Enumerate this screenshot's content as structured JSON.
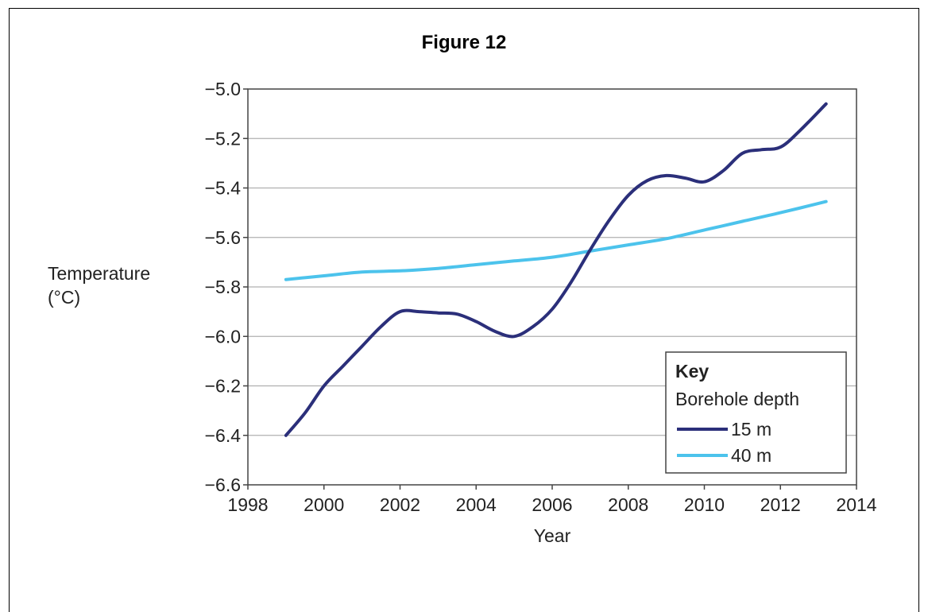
{
  "figure_title": "Figure 12",
  "colors": {
    "series_15m": "#2b2f7a",
    "series_40m": "#4cc3ec",
    "grid": "#b0b0b0",
    "axis": "#444444"
  },
  "chart_data": {
    "type": "line",
    "title": "",
    "xlabel": "Year",
    "ylabel": "Temperature\n(°C)",
    "ylabel_lines": [
      "Temperature",
      "(°C)"
    ],
    "xlim": [
      1998,
      2014
    ],
    "ylim": [
      -6.6,
      -5.0
    ],
    "x_ticks": [
      1998,
      2000,
      2002,
      2004,
      2006,
      2008,
      2010,
      2012,
      2014
    ],
    "y_ticks": [
      -6.6,
      -6.4,
      -6.2,
      -6.0,
      -5.8,
      -5.6,
      -5.4,
      -5.2,
      -5.0
    ],
    "y_tick_labels": [
      "−6.6",
      "−6.4",
      "−6.2",
      "−6.0",
      "−5.8",
      "−5.6",
      "−5.4",
      "−5.2",
      "−5.0"
    ],
    "grid": "horizontal",
    "legend": {
      "placement": "bottom-right",
      "title": "Key",
      "subtitle": "Borehole depth"
    },
    "series": [
      {
        "name": "15 m",
        "color": "#2b2f7a",
        "x": [
          1999.0,
          1999.5,
          2000.0,
          2000.5,
          2001.0,
          2001.5,
          2002.0,
          2002.5,
          2003.0,
          2003.5,
          2004.0,
          2004.5,
          2005.0,
          2005.5,
          2006.0,
          2006.5,
          2007.0,
          2007.5,
          2008.0,
          2008.5,
          2009.0,
          2009.5,
          2010.0,
          2010.5,
          2011.0,
          2011.5,
          2012.0,
          2012.5,
          2013.2
        ],
        "values": [
          -6.4,
          -6.31,
          -6.2,
          -6.12,
          -6.04,
          -5.96,
          -5.9,
          -5.9,
          -5.905,
          -5.91,
          -5.94,
          -5.98,
          -6.0,
          -5.96,
          -5.89,
          -5.78,
          -5.65,
          -5.53,
          -5.43,
          -5.37,
          -5.35,
          -5.36,
          -5.375,
          -5.33,
          -5.26,
          -5.245,
          -5.235,
          -5.17,
          -5.06
        ]
      },
      {
        "name": "40 m",
        "color": "#4cc3ec",
        "x": [
          1999.0,
          2000.0,
          2001.0,
          2002.0,
          2003.0,
          2004.0,
          2005.0,
          2006.0,
          2007.0,
          2008.0,
          2009.0,
          2010.0,
          2011.0,
          2012.0,
          2013.2
        ],
        "values": [
          -5.77,
          -5.755,
          -5.74,
          -5.735,
          -5.725,
          -5.71,
          -5.695,
          -5.68,
          -5.655,
          -5.63,
          -5.605,
          -5.57,
          -5.535,
          -5.5,
          -5.455
        ]
      }
    ]
  }
}
